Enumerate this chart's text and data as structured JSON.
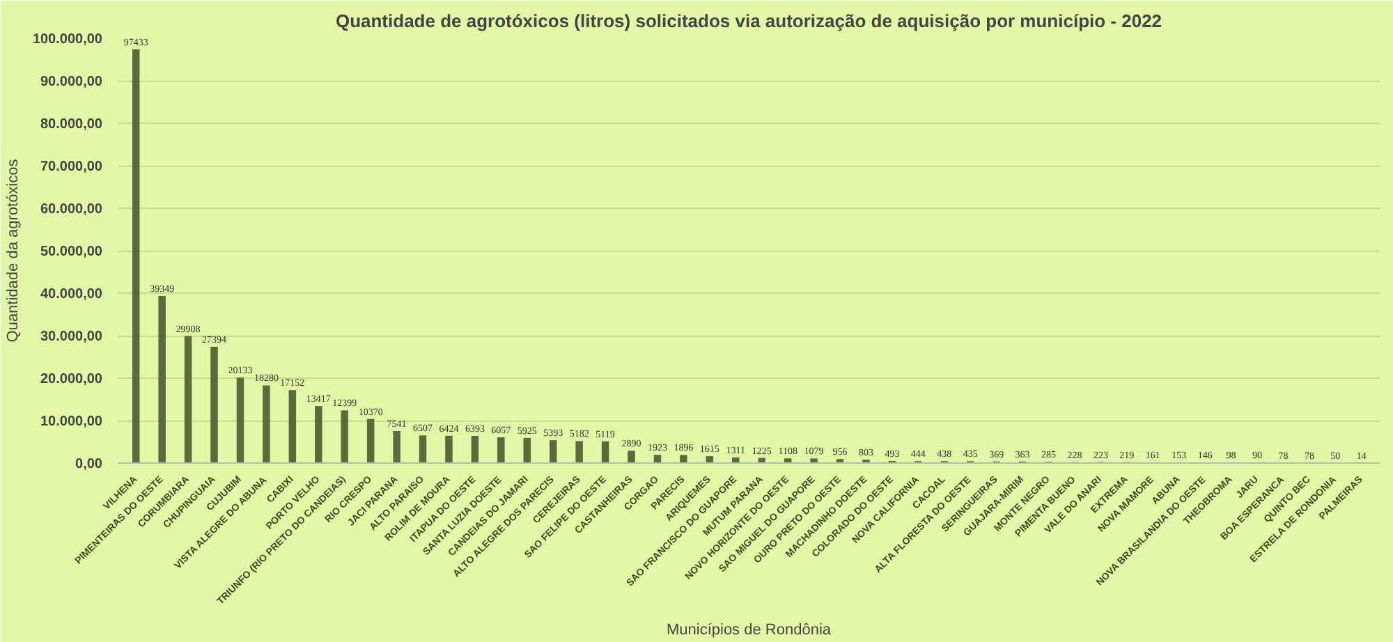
{
  "chart_data": {
    "type": "bar",
    "title": "Quantidade de agrotóxicos (litros) solicitados via autorização de aquisição por município - 2022",
    "xlabel": "Municípios de Rondônia",
    "ylabel": "Quantidade da agrotóxicos",
    "categories": [
      "VILHENA",
      "PIMENTEIRAS DO OESTE",
      "CORUMBIARA",
      "CHUPINGUAIA",
      "CUJUBIM",
      "VISTA ALEGRE DO ABUNA",
      "CABIXI",
      "PORTO VELHO",
      "TRIUNFO (RIO PRETO DO CANDEIAS)",
      "RIO CRESPO",
      "JACI PARANA",
      "ALTO PARAISO",
      "ROLIM DE MOURA",
      "ITAPUA DO OESTE",
      "SANTA LUZIA DOESTE",
      "CANDEIAS DO JAMARI",
      "ALTO ALEGRE DOS PARECIS",
      "CEREJEIRAS",
      "SAO FELIPE DO OESTE",
      "CASTANHEIRAS",
      "CORGAO",
      "PARECIS",
      "ARIQUEMES",
      "SAO FRANCISCO DO GUAPORE",
      "MUTUM PARANA",
      "NOVO HORIZONTE DO OESTE",
      "SAO MIGUEL DO GUAPORE",
      "OURO PRETO DO OESTE",
      "MACHADINHO DOESTE",
      "COLORADO DO OESTE",
      "NOVA CALIFORNIA",
      "CACOAL",
      "ALTA FLORESTA DO OESTE",
      "SERINGUEIRAS",
      "GUAJARA-MIRIM",
      "MONTE NEGRO",
      "PIMENTA BUENO",
      "VALE DO ANARI",
      "EXTREMA",
      "NOVA MAMORE",
      "ABUNA",
      "NOVA BRASILANDIA DO OESTE",
      "THEOBROMA",
      "JARU",
      "BOA ESPERANCA",
      "QUINTO BEC",
      "ESTRELA DE RONDONIA",
      "PALMEIRAS"
    ],
    "values": [
      97433,
      39349,
      29908,
      27394,
      20133,
      18280,
      17152,
      13417,
      12399,
      10370,
      7541,
      6507,
      6424,
      6393,
      6057,
      5925,
      5393,
      5182,
      5119,
      2890,
      1923,
      1896,
      1615,
      1311,
      1225,
      1108,
      1079,
      956,
      803,
      493,
      444,
      438,
      435,
      369,
      363,
      285,
      228,
      223,
      219,
      161,
      153,
      146,
      98,
      90,
      78,
      78,
      50,
      14
    ],
    "color": "#5c6b3c",
    "data_labels": true,
    "grid": "y",
    "ylim": [
      0,
      100000
    ],
    "yticks": [
      {
        "value": 0,
        "label": "0,00"
      },
      {
        "value": 10000,
        "label": "10.000,00"
      },
      {
        "value": 20000,
        "label": "20.000,00"
      },
      {
        "value": 30000,
        "label": "30.000,00"
      },
      {
        "value": 40000,
        "label": "40.000,00"
      },
      {
        "value": 50000,
        "label": "50.000,00"
      },
      {
        "value": 60000,
        "label": "60.000,00"
      },
      {
        "value": 70000,
        "label": "70.000,00"
      },
      {
        "value": 80000,
        "label": "80.000,00"
      },
      {
        "value": 90000,
        "label": "90.000,00"
      },
      {
        "value": 100000,
        "label": "100.000,00"
      }
    ]
  }
}
